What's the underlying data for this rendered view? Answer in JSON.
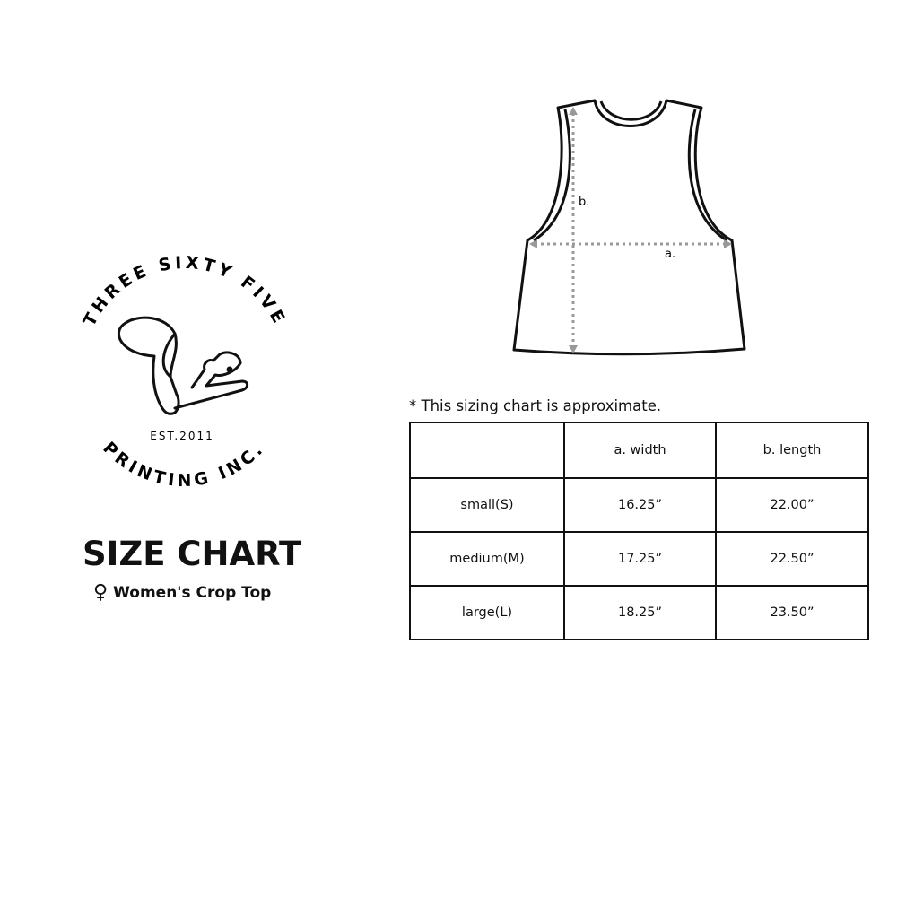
{
  "logo": {
    "top_text": "THREE SIXTY FIVE",
    "bottom_text": "PRINTING INC.",
    "established": "EST.2011",
    "mascot": "squirrel"
  },
  "title": "SIZE CHART",
  "subtitle": {
    "icon": "female-symbol",
    "text": "Women's Crop Top"
  },
  "diagram": {
    "label_a": "a.",
    "label_b": "b.",
    "arrow_color": "#999999"
  },
  "note": "* This sizing chart is approximate.",
  "table": {
    "headers": [
      "",
      "a. width",
      "b. length"
    ],
    "rows": [
      [
        "small(S)",
        "16.25”",
        "22.00”"
      ],
      [
        "medium(M)",
        "17.25”",
        "22.50”"
      ],
      [
        "large(L)",
        "18.25”",
        "23.50”"
      ]
    ]
  }
}
